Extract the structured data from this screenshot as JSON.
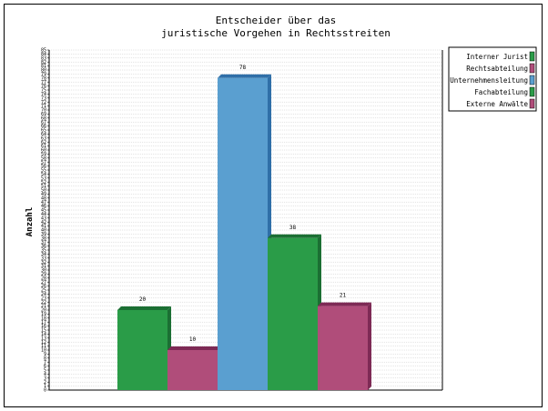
{
  "chart_data": {
    "type": "bar",
    "title_lines": [
      "Entscheider über das",
      "juristische Vorgehen in Rechtsstreiten"
    ],
    "ylabel": "Anzahl",
    "xlabel": "",
    "ylim": [
      0,
      85
    ],
    "grid": true,
    "legend_position": "top-right",
    "categories": [
      "Interner Jurist",
      "Rechtsabteilung",
      "Unternehmensleitung",
      "Fachabteilung",
      "Externe Anwälte"
    ],
    "values": [
      20,
      10,
      78,
      38,
      21
    ],
    "colors": [
      "#2a9c48",
      "#b04d7a",
      "#5a9fd0",
      "#2a9c48",
      "#b04d7a"
    ],
    "shade_colors": [
      "#1b6f33",
      "#7e2a55",
      "#2f6fa8",
      "#1b6f33",
      "#7e2a55"
    ]
  }
}
